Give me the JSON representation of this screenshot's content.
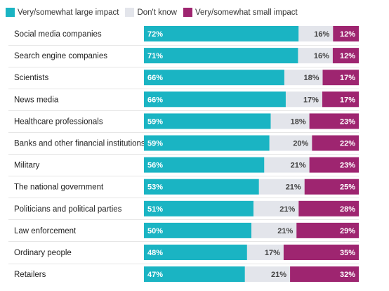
{
  "colors": {
    "large": "#1ab4c3",
    "dontknow": "#e3e5eb",
    "small": "#9e2570",
    "label_on_dark": "#ffffff",
    "label_on_light": "#444444"
  },
  "legend": {
    "large": "Very/somewhat large impact",
    "dontknow": "Don't know",
    "small": "Very/somewhat small impact"
  },
  "chart_data": {
    "type": "bar",
    "stacked": true,
    "orientation": "horizontal",
    "categories": [
      "Social media companies",
      "Search engine companies",
      "Scientists",
      "News media",
      "Healthcare professionals",
      "Banks and other financial institutions",
      "Military",
      "The national government",
      "Politicians and political parties",
      "Law enforcement",
      "Ordinary people",
      "Retailers"
    ],
    "series": [
      {
        "name": "Very/somewhat large impact",
        "values": [
          72,
          71,
          66,
          66,
          59,
          59,
          56,
          53,
          51,
          50,
          48,
          47
        ]
      },
      {
        "name": "Don't know",
        "values": [
          16,
          16,
          18,
          17,
          18,
          20,
          21,
          21,
          21,
          21,
          17,
          21
        ]
      },
      {
        "name": "Very/somewhat small impact",
        "values": [
          12,
          12,
          17,
          17,
          23,
          22,
          23,
          25,
          28,
          29,
          35,
          32
        ]
      }
    ],
    "value_suffix": "%",
    "xlim": [
      0,
      100
    ],
    "legend_position": "top-left"
  }
}
